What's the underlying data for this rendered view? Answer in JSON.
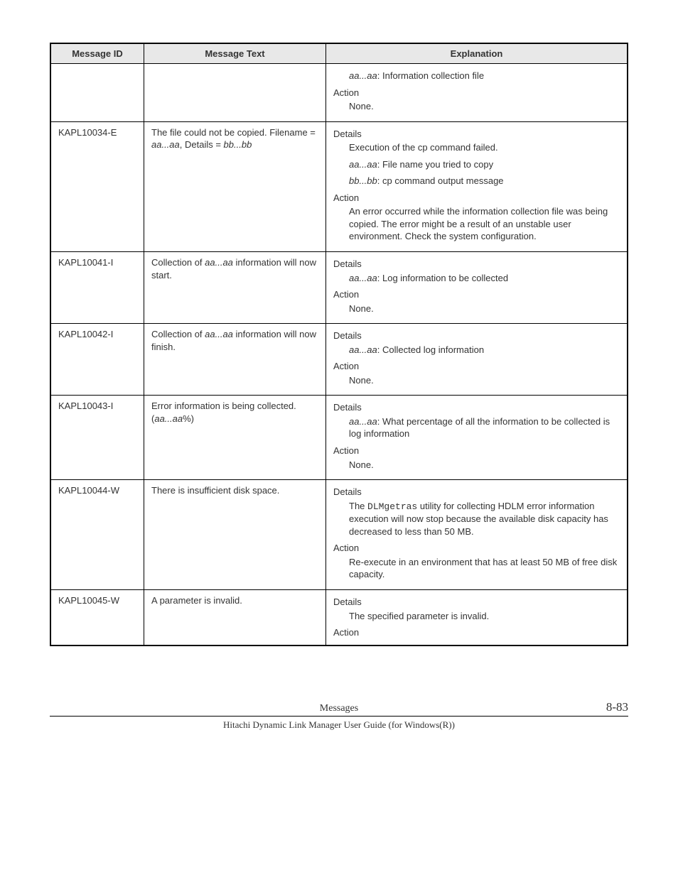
{
  "table": {
    "headers": {
      "id": "Message ID",
      "text": "Message Text",
      "exp": "Explanation"
    },
    "rows": [
      {
        "id": "",
        "msg_parts": [],
        "exp": [
          {
            "type": "indent",
            "parts": [
              {
                "style": "ital",
                "t": "aa...aa"
              },
              {
                "t": ": Information collection file"
              }
            ]
          },
          {
            "type": "label",
            "t": "Action"
          },
          {
            "type": "indent",
            "parts": [
              {
                "t": "None."
              }
            ]
          }
        ]
      },
      {
        "id": "KAPL10034-E",
        "msg_parts": [
          {
            "t": "The file could not be copied. Filename = "
          },
          {
            "style": "ital",
            "t": "aa...aa"
          },
          {
            "t": ", Details = "
          },
          {
            "style": "ital",
            "t": "bb...bb"
          }
        ],
        "exp": [
          {
            "type": "label",
            "t": "Details"
          },
          {
            "type": "indent",
            "parts": [
              {
                "t": "Execution of the cp command failed."
              }
            ]
          },
          {
            "type": "indent",
            "parts": [
              {
                "style": "ital",
                "t": "aa...aa"
              },
              {
                "t": ": File name you tried to copy"
              }
            ]
          },
          {
            "type": "indent",
            "parts": [
              {
                "style": "ital",
                "t": "bb...bb"
              },
              {
                "t": ": cp command output message"
              }
            ]
          },
          {
            "type": "label",
            "t": "Action"
          },
          {
            "type": "indent",
            "parts": [
              {
                "t": "An error occurred while the information collection file was being copied. The error might be a result of an unstable user environment. Check the system configuration."
              }
            ]
          }
        ]
      },
      {
        "id": "KAPL10041-I",
        "msg_parts": [
          {
            "t": "Collection of "
          },
          {
            "style": "ital",
            "t": "aa...aa"
          },
          {
            "t": " information will now start."
          }
        ],
        "exp": [
          {
            "type": "label",
            "t": "Details"
          },
          {
            "type": "indent",
            "parts": [
              {
                "style": "ital",
                "t": "aa...aa"
              },
              {
                "t": ": Log information to be collected"
              }
            ]
          },
          {
            "type": "label",
            "t": "Action"
          },
          {
            "type": "indent",
            "parts": [
              {
                "t": "None."
              }
            ]
          }
        ]
      },
      {
        "id": "KAPL10042-I",
        "msg_parts": [
          {
            "t": "Collection of "
          },
          {
            "style": "ital",
            "t": "aa...aa"
          },
          {
            "t": " information will now finish."
          }
        ],
        "exp": [
          {
            "type": "label",
            "t": "Details"
          },
          {
            "type": "indent",
            "parts": [
              {
                "style": "ital",
                "t": "aa...aa"
              },
              {
                "t": ": Collected log information"
              }
            ]
          },
          {
            "type": "label",
            "t": "Action"
          },
          {
            "type": "indent",
            "parts": [
              {
                "t": "None."
              }
            ]
          }
        ]
      },
      {
        "id": "KAPL10043-I",
        "msg_parts": [
          {
            "t": "Error information is being collected. ("
          },
          {
            "style": "ital",
            "t": "aa...aa"
          },
          {
            "t": "%)"
          }
        ],
        "exp": [
          {
            "type": "label",
            "t": "Details"
          },
          {
            "type": "indent",
            "parts": [
              {
                "style": "ital",
                "t": "aa...aa"
              },
              {
                "t": ": What percentage of all the information to be collected is log information"
              }
            ]
          },
          {
            "type": "label",
            "t": "Action"
          },
          {
            "type": "indent",
            "parts": [
              {
                "t": "None."
              }
            ]
          }
        ]
      },
      {
        "id": "KAPL10044-W",
        "msg_parts": [
          {
            "t": "There is insufficient disk space."
          }
        ],
        "exp": [
          {
            "type": "label",
            "t": "Details"
          },
          {
            "type": "indent",
            "parts": [
              {
                "t": "The "
              },
              {
                "style": "mono",
                "t": "DLMgetras"
              },
              {
                "t": " utility for collecting HDLM error information execution will now stop because the available disk capacity has decreased to less than 50 MB."
              }
            ]
          },
          {
            "type": "label",
            "t": "Action"
          },
          {
            "type": "indent",
            "parts": [
              {
                "t": "Re-execute in an environment that has at least 50 MB of free disk capacity."
              }
            ]
          }
        ]
      },
      {
        "id": "KAPL10045-W",
        "msg_parts": [
          {
            "t": "A parameter is invalid."
          }
        ],
        "exp": [
          {
            "type": "label",
            "t": "Details"
          },
          {
            "type": "indent",
            "parts": [
              {
                "t": "The specified parameter is invalid."
              }
            ]
          },
          {
            "type": "label",
            "t": "Action"
          }
        ]
      }
    ]
  },
  "footer": {
    "section": "Messages",
    "page": "8-83",
    "book": "Hitachi Dynamic Link Manager User Guide (for Windows(R))"
  },
  "styles": {
    "header_bg": "#e8e8e8",
    "border_color": "#000000",
    "text_color": "#333333",
    "font_family": "Verdana",
    "font_size_pt": 10
  }
}
